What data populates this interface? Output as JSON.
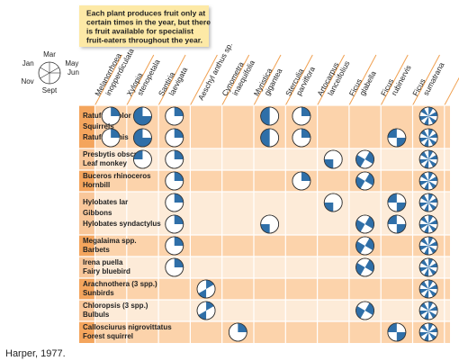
{
  "note": [
    "Each plant produces fruit only at",
    "certain times in the year, but there",
    "is fruit available for specialist",
    "fruit-eaters throughout the year."
  ],
  "legend": {
    "months": [
      {
        "value": 1,
        "label": "Jan"
      },
      {
        "value": 3,
        "label": "Mar"
      },
      {
        "value": 5,
        "label": "May"
      },
      {
        "value": 6,
        "label": "Jun"
      },
      {
        "value": 9,
        "label": "Sept"
      },
      {
        "value": 11,
        "label": "Nov"
      }
    ]
  },
  "plants": [
    [
      "Melanorrhoea",
      "inopperdiculata"
    ],
    [
      "Xylopia",
      "stenopetala"
    ],
    [
      "Santiria",
      "laevigata"
    ],
    [
      "Aeschyl anthus sp."
    ],
    [
      "Cynometra",
      "inaequifolia"
    ],
    [
      "Myristica",
      "gigantea"
    ],
    [
      "Sterculia",
      "parviflora"
    ],
    [
      "Artocarpus",
      "lanceifolius"
    ],
    [
      "Ficus",
      "glabella"
    ],
    [
      "Ficus",
      "rubinervis"
    ],
    [
      "Ficus",
      "sumatrana"
    ]
  ],
  "groups": [
    {
      "lines": [
        {
          "label": "Ratufa bicolor",
          "cells": [
            [
              [
                3,
                5
              ]
            ],
            [
              [
                6,
                2
              ]
            ],
            [
              [
                3,
                5
              ]
            ],
            null,
            null,
            [
              [
                9,
                2
              ]
            ],
            [
              [
                3,
                5
              ]
            ],
            null,
            null,
            null,
            [
              [
                3,
                3
              ],
              [
                5,
                5
              ],
              [
                7,
                7
              ],
              [
                9,
                9
              ],
              [
                11,
                11
              ],
              [
                1,
                1
              ]
            ]
          ]
        },
        {
          "label": "Squirrels"
        },
        {
          "label": "Ratufa affinis",
          "cells": [
            [
              [
                3,
                5
              ]
            ],
            [
              [
                6,
                2
              ]
            ],
            [
              [
                3,
                5
              ]
            ],
            null,
            null,
            [
              [
                9,
                2
              ]
            ],
            [
              [
                3,
                5
              ]
            ],
            null,
            null,
            [
              [
                6,
                8
              ],
              [
                12,
                2
              ]
            ],
            [
              [
                3,
                3
              ],
              [
                5,
                5
              ],
              [
                7,
                7
              ],
              [
                9,
                9
              ],
              [
                11,
                11
              ],
              [
                1,
                1
              ]
            ]
          ]
        }
      ]
    },
    {
      "lines": [
        {
          "label": "Presbytis obscura",
          "cells": [
            null,
            [
              [
                12,
                2
              ]
            ],
            [
              [
                3,
                5
              ]
            ],
            null,
            null,
            null,
            null,
            [
              [
                9,
                11
              ]
            ],
            [
              [
                4,
                6
              ],
              [
                10,
                12
              ]
            ],
            null,
            [
              [
                3,
                3
              ],
              [
                5,
                5
              ],
              [
                7,
                7
              ],
              [
                9,
                9
              ],
              [
                11,
                11
              ],
              [
                1,
                1
              ]
            ]
          ]
        },
        {
          "label": "Leaf monkey"
        }
      ]
    },
    {
      "lines": [
        {
          "label": "Buceros rhinoceros",
          "cells": [
            null,
            null,
            [
              [
                3,
                5
              ]
            ],
            null,
            null,
            null,
            [
              [
                3,
                5
              ]
            ],
            null,
            [
              [
                4,
                6
              ],
              [
                10,
                12
              ]
            ],
            null,
            [
              [
                3,
                3
              ],
              [
                5,
                5
              ],
              [
                7,
                7
              ],
              [
                9,
                9
              ],
              [
                11,
                11
              ],
              [
                1,
                1
              ]
            ]
          ]
        },
        {
          "label": "Hornbill"
        }
      ]
    },
    {
      "lines": [
        {
          "label": "Hylobates lar",
          "cells": [
            null,
            null,
            [
              [
                3,
                5
              ]
            ],
            null,
            null,
            null,
            null,
            [
              [
                9,
                11
              ]
            ],
            null,
            [
              [
                6,
                8
              ],
              [
                12,
                2
              ]
            ],
            [
              [
                3,
                3
              ],
              [
                5,
                5
              ],
              [
                7,
                7
              ],
              [
                9,
                9
              ],
              [
                11,
                11
              ],
              [
                1,
                1
              ]
            ]
          ]
        },
        {
          "label": "Gibbons"
        },
        {
          "label": "Hylobates syndactylus",
          "cells": [
            null,
            null,
            [
              [
                3,
                5
              ]
            ],
            null,
            null,
            [
              [
                9,
                11
              ]
            ],
            null,
            null,
            [
              [
                4,
                6
              ],
              [
                10,
                12
              ]
            ],
            [
              [
                6,
                8
              ],
              [
                12,
                2
              ]
            ],
            [
              [
                3,
                3
              ],
              [
                5,
                5
              ],
              [
                7,
                7
              ],
              [
                9,
                9
              ],
              [
                11,
                11
              ],
              [
                1,
                1
              ]
            ]
          ]
        }
      ]
    },
    {
      "lines": [
        {
          "label": "Megalaima spp.",
          "cells": [
            null,
            null,
            [
              [
                3,
                5
              ]
            ],
            null,
            null,
            null,
            null,
            null,
            [
              [
                4,
                6
              ],
              [
                10,
                12
              ]
            ],
            null,
            [
              [
                3,
                3
              ],
              [
                5,
                5
              ],
              [
                7,
                7
              ],
              [
                9,
                9
              ],
              [
                11,
                11
              ],
              [
                1,
                1
              ]
            ]
          ]
        },
        {
          "label": "Barbets"
        }
      ]
    },
    {
      "lines": [
        {
          "label": "Irena puella",
          "cells": [
            null,
            null,
            [
              [
                3,
                5
              ]
            ],
            null,
            null,
            null,
            null,
            null,
            [
              [
                4,
                6
              ],
              [
                10,
                12
              ]
            ],
            null,
            [
              [
                3,
                3
              ],
              [
                5,
                5
              ],
              [
                7,
                7
              ],
              [
                9,
                9
              ],
              [
                11,
                11
              ],
              [
                1,
                1
              ]
            ]
          ]
        },
        {
          "label": "Fairy bluebird"
        }
      ]
    },
    {
      "lines": [
        {
          "label": "Arachnothera (3 spp.)",
          "cells": [
            null,
            null,
            null,
            [
              [
                3,
                4
              ],
              [
                9,
                10
              ]
            ],
            null,
            null,
            null,
            null,
            null,
            null,
            [
              [
                3,
                3
              ],
              [
                5,
                5
              ],
              [
                7,
                7
              ],
              [
                9,
                9
              ],
              [
                11,
                11
              ],
              [
                1,
                1
              ]
            ]
          ]
        },
        {
          "label": "Sunbirds"
        }
      ]
    },
    {
      "lines": [
        {
          "label": "Chloropsis (3 spp.)",
          "cells": [
            null,
            null,
            null,
            [
              [
                3,
                4
              ],
              [
                9,
                10
              ]
            ],
            null,
            null,
            null,
            null,
            [
              [
                4,
                6
              ],
              [
                10,
                12
              ]
            ],
            null,
            [
              [
                3,
                3
              ],
              [
                5,
                5
              ],
              [
                7,
                7
              ],
              [
                9,
                9
              ],
              [
                11,
                11
              ],
              [
                1,
                1
              ]
            ]
          ]
        },
        {
          "label": "Bulbuls"
        }
      ]
    },
    {
      "lines": [
        {
          "label": "Callosciurus nigrovittatus",
          "cells": [
            null,
            null,
            null,
            null,
            [
              [
                3,
                5
              ]
            ],
            null,
            null,
            null,
            null,
            [
              [
                6,
                8
              ],
              [
                12,
                2
              ]
            ],
            [
              [
                3,
                3
              ],
              [
                5,
                5
              ],
              [
                7,
                7
              ],
              [
                9,
                9
              ],
              [
                11,
                11
              ],
              [
                1,
                1
              ]
            ]
          ]
        },
        {
          "label": "Forest squirrel"
        }
      ]
    }
  ],
  "caption": "Harper, 1977."
}
